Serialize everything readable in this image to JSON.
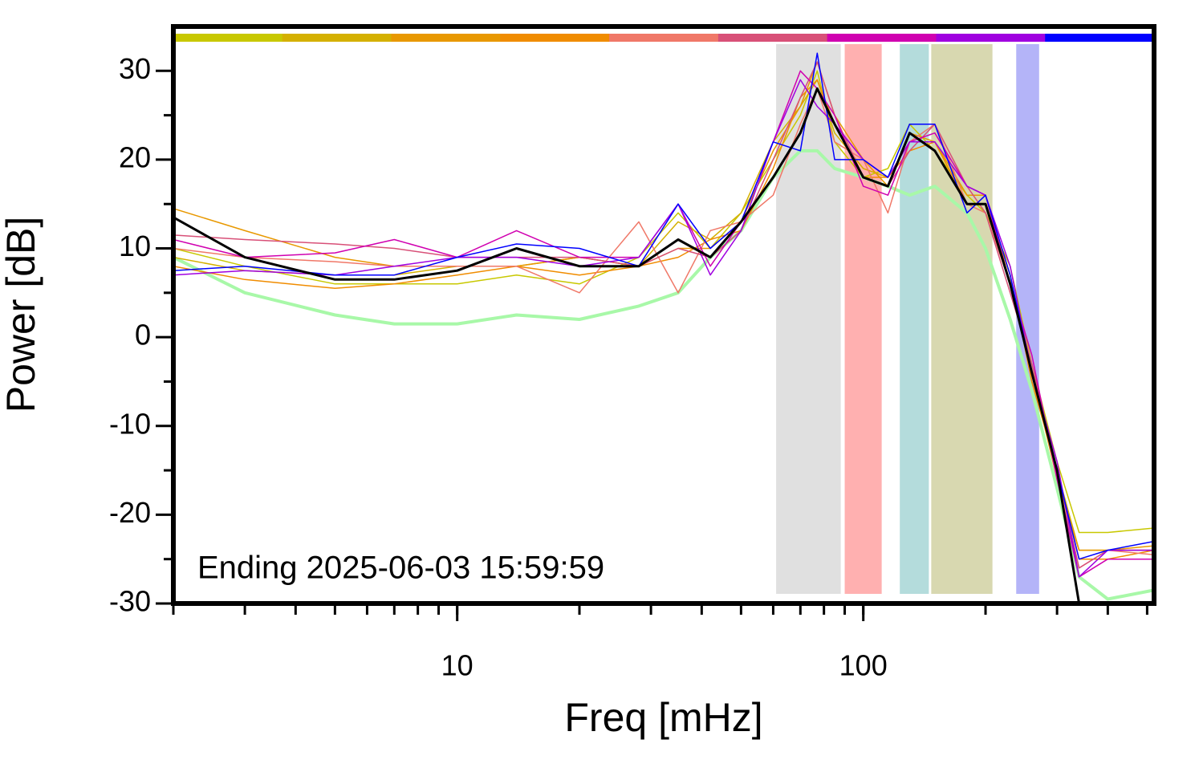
{
  "chart_data": {
    "type": "line",
    "x_label": "Freq [mHz]",
    "y_label": "Power [dB]",
    "annotation": "Ending 2025-06-03 15:59:59",
    "xscale": "log",
    "xlim": [
      2,
      520
    ],
    "ylim": [
      -30,
      35
    ],
    "xticks": [
      10,
      100
    ],
    "yticks": [
      -30,
      -20,
      -10,
      0,
      10,
      20,
      30
    ],
    "color_bar": [
      "#c8c800",
      "#d4b000",
      "#e89800",
      "#f08c00",
      "#f07868",
      "#d85078",
      "#d000b0",
      "#a000e0",
      "#0000ff"
    ],
    "bands": [
      {
        "xlim": [
          61,
          88
        ],
        "color": "#e0e0e0"
      },
      {
        "xlim": [
          90,
          111
        ],
        "color": "#ffb0b0"
      },
      {
        "xlim": [
          123,
          145
        ],
        "color": "#b4dcdc"
      },
      {
        "xlim": [
          147,
          208
        ],
        "color": "#d8d8b0"
      },
      {
        "xlim": [
          238,
          271
        ],
        "color": "#b4b4f8"
      }
    ],
    "x": [
      2,
      3,
      5,
      7,
      10,
      14,
      20,
      28,
      35,
      42,
      50,
      60,
      70,
      77,
      85,
      100,
      115,
      130,
      150,
      180,
      200,
      230,
      260,
      300,
      340,
      400,
      520
    ],
    "series": [
      {
        "color": "#a8f8a8",
        "width": 4,
        "values": [
          9,
          5,
          2.5,
          1.5,
          1.5,
          2.5,
          2,
          3.5,
          5,
          9,
          12,
          18,
          21,
          21,
          19,
          18,
          17,
          16,
          17,
          14,
          10,
          2,
          -6,
          -17,
          -27,
          -29.5,
          -28.5
        ]
      },
      {
        "color": "#c8c800",
        "width": 1.5,
        "values": [
          10,
          8,
          6,
          6,
          6,
          7,
          6,
          9,
          14,
          10,
          14,
          20,
          25,
          30,
          22,
          18,
          19,
          24,
          21,
          16,
          14,
          8,
          -3,
          -14,
          -22,
          -22,
          -21.5
        ]
      },
      {
        "color": "#d4b000",
        "width": 1.5,
        "values": [
          9,
          7.5,
          7,
          7,
          8,
          8,
          9,
          8,
          13,
          11,
          14,
          22,
          26,
          29,
          23,
          19,
          18,
          22,
          22,
          15,
          15,
          7,
          -5,
          -15,
          -24,
          -24,
          -24
        ]
      },
      {
        "color": "#e89800",
        "width": 1.5,
        "values": [
          14.5,
          12,
          9,
          8,
          8,
          8,
          9,
          8,
          10,
          10,
          13,
          21,
          26,
          31,
          25,
          20,
          17,
          23,
          22,
          16,
          16,
          6,
          -4,
          -16,
          -24,
          -24,
          -23.5
        ]
      },
      {
        "color": "#f08c00",
        "width": 1.5,
        "values": [
          8,
          6.5,
          5.5,
          6,
          7,
          8,
          7,
          8,
          9,
          11,
          12,
          19,
          27,
          29,
          24,
          18,
          18,
          21,
          22,
          15,
          15,
          7,
          -5,
          -15,
          -25,
          -25,
          -24
        ]
      },
      {
        "color": "#f07868",
        "width": 1.5,
        "values": [
          10,
          9,
          8.5,
          8,
          8,
          8,
          5,
          13,
          5,
          12,
          13,
          16,
          24,
          28,
          22,
          20,
          14,
          22,
          24,
          15,
          14,
          6,
          -3,
          -16,
          -26,
          -24,
          -24.5
        ]
      },
      {
        "color": "#d85078",
        "width": 1.5,
        "values": [
          11.5,
          11,
          10.5,
          10,
          9,
          9,
          9,
          8,
          10,
          9,
          12,
          20,
          27,
          31,
          25,
          18,
          17,
          21,
          24,
          17,
          14,
          5,
          -3,
          -15,
          -26,
          -24,
          -24
        ]
      },
      {
        "color": "#d000b0",
        "width": 1.5,
        "values": [
          11,
          9,
          9.5,
          11,
          9,
          12,
          9,
          9,
          15,
          8,
          13,
          22,
          30,
          28,
          25,
          17,
          16,
          22,
          23,
          17,
          16,
          6,
          -2,
          -16,
          -27,
          -25,
          -25
        ]
      },
      {
        "color": "#a000e0",
        "width": 1.5,
        "values": [
          7,
          7.5,
          7,
          8,
          9,
          9,
          8,
          9,
          15,
          7,
          12,
          22,
          29,
          26,
          24,
          20,
          18,
          22,
          22,
          17,
          16,
          8,
          -4,
          -14,
          -27,
          -24,
          -24
        ]
      },
      {
        "color": "#0000ff",
        "width": 1.5,
        "values": [
          7.5,
          8,
          7,
          7,
          9,
          10.5,
          10,
          8,
          15,
          10,
          13,
          22,
          21,
          32,
          20,
          20,
          18,
          24,
          24,
          14,
          16,
          7,
          -4,
          -15,
          -25,
          -24,
          -23
        ]
      },
      {
        "color": "#000000",
        "width": 3,
        "values": [
          13.5,
          9,
          6.5,
          6.5,
          7.5,
          10,
          8,
          8,
          11,
          9,
          13,
          18,
          23,
          28,
          24,
          18,
          17,
          23,
          21,
          15,
          15,
          6,
          -4,
          -15,
          -30,
          null,
          null
        ]
      }
    ]
  }
}
